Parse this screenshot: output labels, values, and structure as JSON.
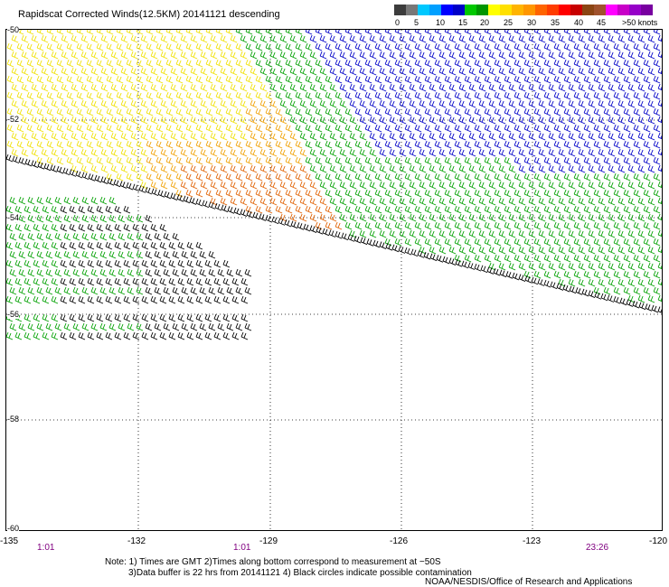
{
  "title": "Rapidscat Corrected Winds(12.5KM) 20141121 descending",
  "legend": {
    "ticks": [
      "0",
      "5",
      "10",
      "15",
      "20",
      "25",
      "30",
      "35",
      "40",
      "45",
      ">50 knots"
    ],
    "colors": [
      "#3c3c3c",
      "#787878",
      "#00c8ff",
      "#00a0ff",
      "#0000ff",
      "#0000c8",
      "#00c800",
      "#009600",
      "#ffff00",
      "#ffe000",
      "#ffb400",
      "#ff9600",
      "#ff6400",
      "#ff3c00",
      "#ff0000",
      "#c80000",
      "#8b4513",
      "#a0522d",
      "#ff00ff",
      "#c800c8",
      "#9600c8",
      "#7800a0"
    ]
  },
  "latitude_labels": [
    "-50",
    "-52",
    "-54",
    "-56",
    "-58",
    "-60"
  ],
  "longitude_labels": [
    "-135",
    "-132",
    "-129",
    "-126",
    "-123",
    "-120"
  ],
  "time_labels": [
    {
      "text": "1:01",
      "color": "#800080"
    },
    {
      "text": "1:01",
      "color": "#800080"
    },
    {
      "text": "23:26",
      "color": "#800080"
    }
  ],
  "notes": [
    "Note: 1) Times are GMT 2)Times along bottom correspond to measurement at −50S",
    "3)Data buffer is 22 hrs from 20141121 4) Black circles indicate possible contamination"
  ],
  "credit": "NOAA/NESDIS/Office of Research and Applications",
  "wind_colors": {
    "calm": "#000000",
    "10-15": "#0000c8",
    "15-20": "#00a000",
    "20-25": "#f0e000",
    "25-30": "#f0a000",
    "30-35": "#e06000",
    "5-10": "#00c8ff"
  }
}
